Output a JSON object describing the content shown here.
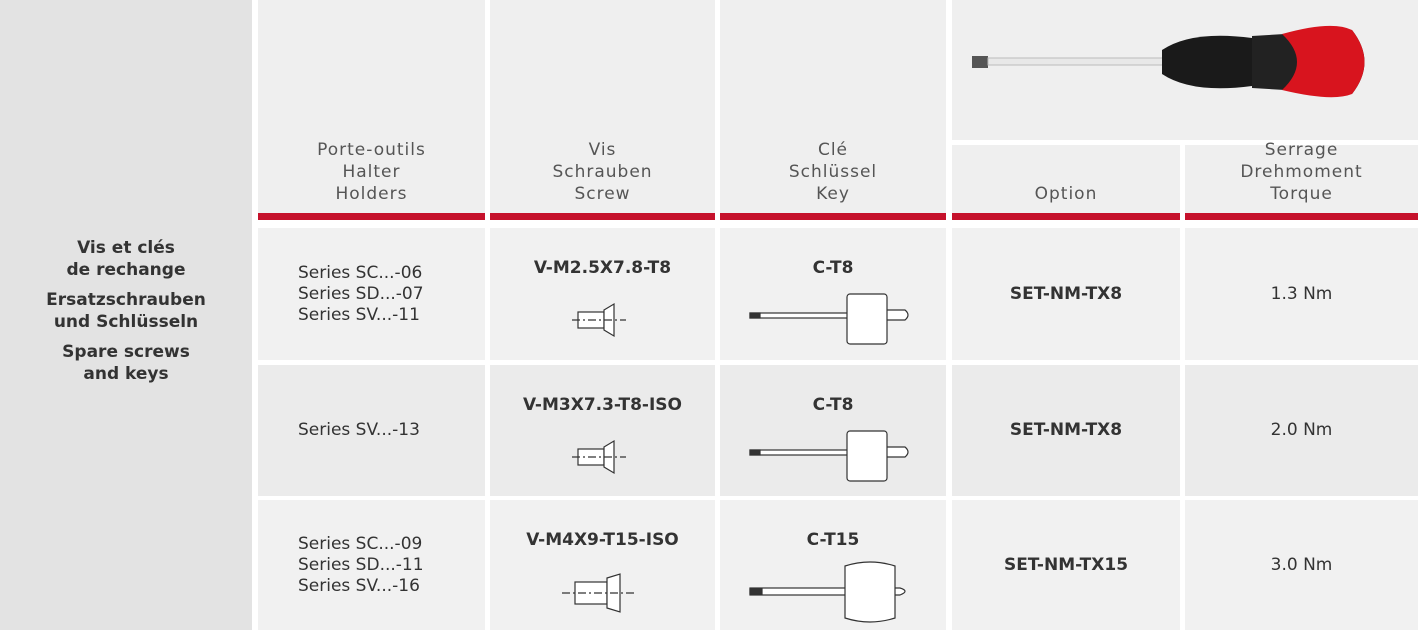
{
  "side_label": [
    [
      "Vis et clés",
      "de rechange"
    ],
    [
      "Ersatzschrauben",
      "und Schlüsseln"
    ],
    [
      "Spare screws",
      "and keys"
    ]
  ],
  "headers": [
    [
      "Porte-outils",
      "Halter",
      "Holders"
    ],
    [
      "Vis",
      "Schrauben",
      "Screw"
    ],
    [
      "Clé",
      "Schlüssel",
      "Key"
    ],
    [
      "Option"
    ],
    [
      "Serrage",
      "Drehmoment",
      "Torque"
    ]
  ],
  "rows": [
    {
      "holders": [
        "Series SC...-06",
        "Series SD...-07",
        "Series SV...-11"
      ],
      "screw": "V-M2.5X7.8-T8",
      "key": "C-T8",
      "option": "SET-NM-TX8",
      "torque": "1.3 Nm"
    },
    {
      "holders": [
        "Series SV...-13"
      ],
      "screw": "V-M3X7.3-T8-ISO",
      "key": "C-T8",
      "option": "SET-NM-TX8",
      "torque": "2.0 Nm"
    },
    {
      "holders": [
        "Series SC...-09",
        "Series SD...-11",
        "Series SV...-16"
      ],
      "screw": "V-M4X9-T15-ISO",
      "key": "C-T15",
      "option": "SET-NM-TX15",
      "torque": "3.0 Nm"
    }
  ]
}
